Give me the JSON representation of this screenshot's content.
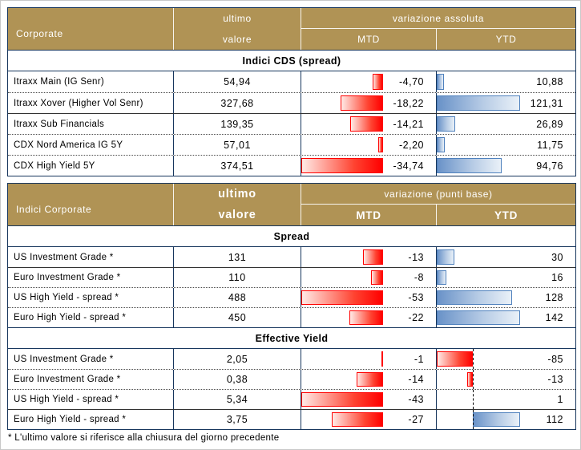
{
  "colors": {
    "header_bg": "#B09355",
    "frame_border": "#17365D",
    "negative_bar": "#FF0000",
    "positive_bar_border": "#4F81BD",
    "positive_bar_fill": "#6992C8"
  },
  "footnote": "* L'ultimo valore si riferisce alla chiusura del giorno precedente",
  "chart_data": [
    {
      "type": "table",
      "title": "Corporate",
      "value_header": [
        "ultimo",
        "valore"
      ],
      "variation_header": "variazione assoluta",
      "columns": [
        "MTD",
        "YTD"
      ],
      "section": "Indici CDS (spread)",
      "rows": [
        {
          "label": "Itraxx Main (IG Senr)",
          "ultimo": "54,94",
          "mtd": "-4,70",
          "ytd": "10,88"
        },
        {
          "label": "Itraxx Xover (Higher Vol Senr)",
          "ultimo": "327,68",
          "mtd": "-18,22",
          "ytd": "121,31"
        },
        {
          "label": "Itraxx Sub Financials",
          "ultimo": "139,35",
          "mtd": "-14,21",
          "ytd": "26,89"
        },
        {
          "label": "CDX Nord America IG 5Y",
          "ultimo": "57,01",
          "mtd": "-2,20",
          "ytd": "11,75"
        },
        {
          "label": "CDX High Yield 5Y",
          "ultimo": "374,51",
          "mtd": "-34,74",
          "ytd": "94,76"
        }
      ]
    },
    {
      "type": "table",
      "title": "Indici Corporate",
      "value_header": [
        "ultimo",
        "valore"
      ],
      "variation_header": "variazione (punti base)",
      "columns": [
        "MTD",
        "YTD"
      ],
      "sections": [
        {
          "name": "Spread",
          "rows": [
            {
              "label": "US Investment Grade *",
              "ultimo": "131",
              "mtd": "-13",
              "ytd": "30"
            },
            {
              "label": "Euro Investment Grade *",
              "ultimo": "110",
              "mtd": "-8",
              "ytd": "16"
            },
            {
              "label": "US High Yield  - spread *",
              "ultimo": "488",
              "mtd": "-53",
              "ytd": "128"
            },
            {
              "label": "Euro High Yield  - spread *",
              "ultimo": "450",
              "mtd": "-22",
              "ytd": "142"
            }
          ]
        },
        {
          "name": "Effective Yield",
          "rows": [
            {
              "label": "US Investment Grade *",
              "ultimo": "2,05",
              "mtd": "-1",
              "ytd": "-85"
            },
            {
              "label": "Euro Investment Grade *",
              "ultimo": "0,38",
              "mtd": "-14",
              "ytd": "-13"
            },
            {
              "label": "US High Yield  - spread *",
              "ultimo": "5,34",
              "mtd": "-43",
              "ytd": "1"
            },
            {
              "label": "Euro High Yield  - spread *",
              "ultimo": "3,75",
              "mtd": "-27",
              "ytd": "112"
            }
          ]
        }
      ]
    }
  ]
}
